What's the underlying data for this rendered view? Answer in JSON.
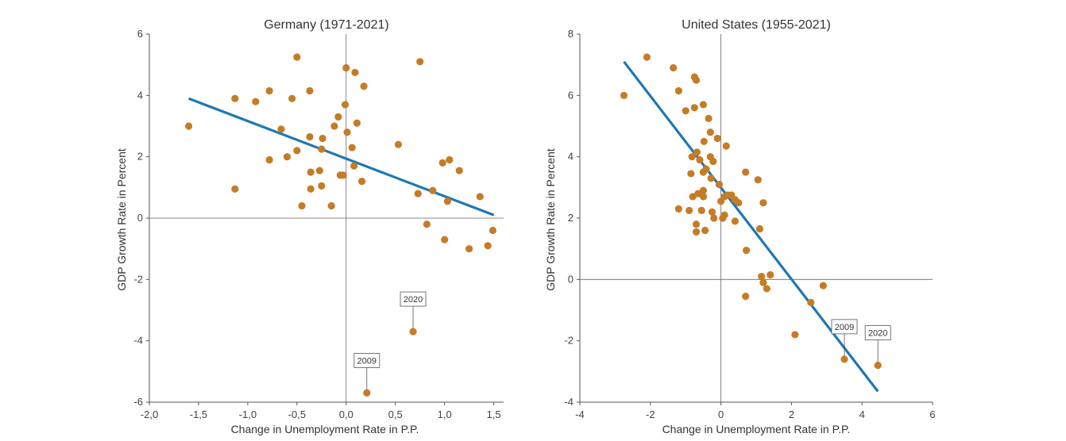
{
  "colors": {
    "point": "#c57c26",
    "fit": "#1f77b4",
    "axis": "#555555",
    "zero": "#666666"
  },
  "chart_data": [
    {
      "type": "scatter",
      "title": "Germany (1971-2021)",
      "xlabel": "Change in Unemployment Rate in P.P.",
      "ylabel": "GDP Growth Rate in Percent",
      "xlim": [
        -2.0,
        1.6
      ],
      "ylim": [
        -6,
        6
      ],
      "xticks": [
        -2.0,
        -1.5,
        -1.0,
        -0.5,
        0.0,
        0.5,
        1.0,
        1.5
      ],
      "xtick_labels": [
        "-2,0",
        "-1,5",
        "-1,0",
        "-0,5",
        "0,0",
        "0,5",
        "1,0",
        "1,5"
      ],
      "yticks": [
        -6,
        -4,
        -2,
        0,
        2,
        4,
        6
      ],
      "ytick_labels": [
        "-6",
        "-4",
        "-2",
        "0",
        "2",
        "4",
        "6"
      ],
      "grid": false,
      "fit_line": {
        "x": [
          -1.6,
          1.5
        ],
        "y": [
          3.9,
          0.1
        ]
      },
      "points": [
        [
          -1.6,
          3.0
        ],
        [
          -1.13,
          3.9
        ],
        [
          -1.13,
          0.95
        ],
        [
          -0.92,
          3.8
        ],
        [
          -0.78,
          4.15
        ],
        [
          -0.78,
          1.9
        ],
        [
          -0.66,
          2.9
        ],
        [
          -0.6,
          2.0
        ],
        [
          -0.55,
          3.9
        ],
        [
          -0.5,
          5.25
        ],
        [
          -0.5,
          2.2
        ],
        [
          -0.45,
          0.4
        ],
        [
          -0.37,
          4.15
        ],
        [
          -0.37,
          2.65
        ],
        [
          -0.36,
          1.5
        ],
        [
          -0.36,
          0.95
        ],
        [
          -0.27,
          1.55
        ],
        [
          -0.25,
          2.25
        ],
        [
          -0.25,
          1.05
        ],
        [
          -0.24,
          2.6
        ],
        [
          -0.15,
          0.4
        ],
        [
          -0.12,
          3.0
        ],
        [
          -0.08,
          3.3
        ],
        [
          -0.06,
          1.4
        ],
        [
          -0.03,
          1.4
        ],
        [
          -0.01,
          3.7
        ],
        [
          0.0,
          4.9
        ],
        [
          0.01,
          2.8
        ],
        [
          0.06,
          2.3
        ],
        [
          0.08,
          1.7
        ],
        [
          0.09,
          4.75
        ],
        [
          0.11,
          3.1
        ],
        [
          0.16,
          1.2
        ],
        [
          0.18,
          4.3
        ],
        [
          0.53,
          2.4
        ],
        [
          0.73,
          0.8
        ],
        [
          0.75,
          5.1
        ],
        [
          0.82,
          -0.2
        ],
        [
          0.88,
          0.9
        ],
        [
          0.98,
          1.8
        ],
        [
          1.0,
          -0.7
        ],
        [
          1.03,
          0.55
        ],
        [
          1.05,
          1.9
        ],
        [
          1.15,
          1.55
        ],
        [
          1.25,
          -1.0
        ],
        [
          1.36,
          0.7
        ],
        [
          1.44,
          -0.9
        ],
        [
          1.49,
          -0.4
        ],
        [
          0.68,
          -3.7
        ],
        [
          0.21,
          -5.7
        ]
      ],
      "annotations": [
        {
          "text": "2020",
          "x": 0.68,
          "y": -3.7
        },
        {
          "text": "2009",
          "x": 0.21,
          "y": -5.7
        }
      ]
    },
    {
      "type": "scatter",
      "title": "United States (1955-2021)",
      "xlabel": "Change in Unemployment Rate in P.P.",
      "ylabel": "GDP Growth Rate in Percent",
      "xlim": [
        -4,
        6
      ],
      "ylim": [
        -4,
        8
      ],
      "xticks": [
        -4,
        -2,
        0,
        2,
        4,
        6
      ],
      "xtick_labels": [
        "-4",
        "-2",
        "0",
        "2",
        "4",
        "6"
      ],
      "yticks": [
        -4,
        -2,
        0,
        2,
        4,
        6,
        8
      ],
      "ytick_labels": [
        "-4",
        "-2",
        "0",
        "2",
        "4",
        "6",
        "8"
      ],
      "grid": false,
      "fit_line": {
        "x": [
          -2.75,
          4.45
        ],
        "y": [
          7.1,
          -3.65
        ]
      },
      "points": [
        [
          -2.75,
          6.0
        ],
        [
          -2.1,
          7.25
        ],
        [
          -1.35,
          6.9
        ],
        [
          -1.2,
          2.3
        ],
        [
          -1.2,
          6.15
        ],
        [
          -1.0,
          5.5
        ],
        [
          -0.9,
          2.25
        ],
        [
          -0.85,
          3.45
        ],
        [
          -0.82,
          4.0
        ],
        [
          -0.8,
          2.7
        ],
        [
          -0.75,
          5.6
        ],
        [
          -0.75,
          6.6
        ],
        [
          -0.7,
          6.5
        ],
        [
          -0.7,
          1.55
        ],
        [
          -0.7,
          1.8
        ],
        [
          -0.68,
          4.15
        ],
        [
          -0.65,
          2.8
        ],
        [
          -0.6,
          3.9
        ],
        [
          -0.55,
          2.25
        ],
        [
          -0.5,
          5.7
        ],
        [
          -0.5,
          3.5
        ],
        [
          -0.5,
          2.7
        ],
        [
          -0.5,
          2.9
        ],
        [
          -0.48,
          4.5
        ],
        [
          -0.45,
          1.6
        ],
        [
          -0.42,
          3.6
        ],
        [
          -0.35,
          5.25
        ],
        [
          -0.3,
          4.8
        ],
        [
          -0.3,
          4.0
        ],
        [
          -0.28,
          3.3
        ],
        [
          -0.25,
          2.2
        ],
        [
          -0.22,
          3.85
        ],
        [
          -0.2,
          2.0
        ],
        [
          -0.1,
          4.6
        ],
        [
          -0.05,
          3.1
        ],
        [
          0.0,
          2.55
        ],
        [
          0.05,
          2.0
        ],
        [
          0.1,
          2.7
        ],
        [
          0.1,
          2.1
        ],
        [
          0.15,
          4.35
        ],
        [
          0.2,
          2.75
        ],
        [
          0.3,
          2.75
        ],
        [
          0.4,
          2.6
        ],
        [
          0.4,
          1.9
        ],
        [
          0.5,
          2.5
        ],
        [
          0.7,
          3.5
        ],
        [
          0.72,
          0.95
        ],
        [
          1.05,
          3.25
        ],
        [
          1.1,
          1.65
        ],
        [
          1.15,
          0.1
        ],
        [
          1.2,
          2.5
        ],
        [
          1.2,
          -0.1
        ],
        [
          1.3,
          -0.3
        ],
        [
          1.4,
          0.15
        ],
        [
          0.7,
          -0.55
        ],
        [
          2.1,
          -1.8
        ],
        [
          2.55,
          -0.75
        ],
        [
          2.9,
          -0.2
        ],
        [
          3.5,
          -2.6
        ],
        [
          4.45,
          -2.8
        ]
      ],
      "annotations": [
        {
          "text": "2009",
          "x": 3.5,
          "y": -2.6
        },
        {
          "text": "2020",
          "x": 4.45,
          "y": -2.8
        }
      ]
    }
  ]
}
